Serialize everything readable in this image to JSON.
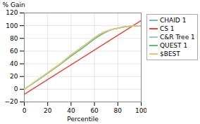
{
  "chart_data": {
    "type": "line",
    "xlabel": "Percentile",
    "ylabel": "% Gain",
    "xlim": [
      0,
      100
    ],
    "ylim": [
      -20,
      120
    ],
    "xticks": [
      0,
      20,
      40,
      60,
      80,
      100
    ],
    "yticks": [
      -20,
      0,
      20,
      40,
      60,
      80,
      100,
      120
    ],
    "grid": true,
    "legend": "right",
    "series": [
      {
        "name": "CHAID 1",
        "color": "#7ab4c8",
        "x": [
          0,
          10,
          20,
          30,
          40,
          50,
          55,
          60,
          65,
          70,
          75,
          80,
          85,
          90,
          95,
          100
        ],
        "values": [
          0,
          13,
          26,
          39,
          54,
          67,
          74,
          81,
          87,
          91,
          94,
          96,
          98,
          99,
          100,
          100
        ]
      },
      {
        "name": "CS 1",
        "color": "#e8473f",
        "x": [
          0,
          100
        ],
        "values": [
          -8,
          108
        ]
      },
      {
        "name": "C&R Tree 1",
        "color": "#9dc4d8",
        "x": [
          0,
          10,
          20,
          30,
          40,
          50,
          55,
          60,
          65,
          70,
          75,
          80,
          85,
          90,
          95,
          100
        ],
        "values": [
          0,
          13,
          26,
          39,
          54,
          67,
          74,
          81,
          87,
          91,
          94,
          96,
          98,
          99,
          100,
          100
        ]
      },
      {
        "name": "QUEST 1",
        "color": "#6ab87a",
        "x": [
          0,
          10,
          20,
          30,
          40,
          50,
          55,
          60,
          65,
          70,
          75,
          80,
          85,
          90,
          95,
          100
        ],
        "values": [
          0,
          12,
          25,
          38,
          52,
          65,
          72,
          79,
          85,
          90,
          94,
          96,
          98,
          99,
          100,
          100
        ]
      },
      {
        "name": "$BEST",
        "color": "#e8c86e",
        "x": [
          0,
          10,
          20,
          30,
          40,
          50,
          55,
          60,
          65,
          70,
          75,
          80,
          85,
          90,
          95,
          100
        ],
        "values": [
          0,
          13,
          26,
          39,
          54,
          67,
          74,
          81,
          87,
          91,
          94,
          96,
          98,
          99,
          100,
          100
        ]
      }
    ]
  }
}
